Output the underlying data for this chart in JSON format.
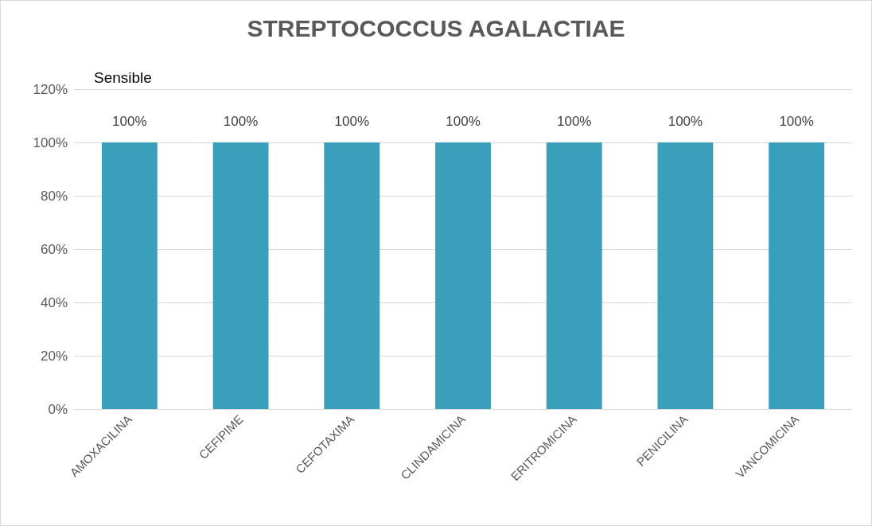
{
  "chart_data": {
    "type": "bar",
    "title": "STREPTOCOCCUS AGALACTIAE",
    "categories": [
      "AMOXACILINA",
      "CEFIPIME",
      "CEFOTAXIMA",
      "CLINDAMICINA",
      "ERITROMICINA",
      "PENICILINA",
      "VANCOMICINA"
    ],
    "values": [
      100,
      100,
      100,
      100,
      100,
      100,
      100
    ],
    "value_labels": [
      "100%",
      "100%",
      "100%",
      "100%",
      "100%",
      "100%",
      "100%"
    ],
    "color": "#3a9fba",
    "ylim": [
      0,
      120
    ],
    "yticks": [
      {
        "value": 0,
        "label": "0%"
      },
      {
        "value": 20,
        "label": "20%"
      },
      {
        "value": 40,
        "label": "40%"
      },
      {
        "value": 60,
        "label": "60%"
      },
      {
        "value": 80,
        "label": "80%"
      },
      {
        "value": 100,
        "label": "100%"
      },
      {
        "value": 120,
        "label": "120%"
      }
    ],
    "annotations": [
      "Sensible"
    ],
    "grid": "y"
  }
}
